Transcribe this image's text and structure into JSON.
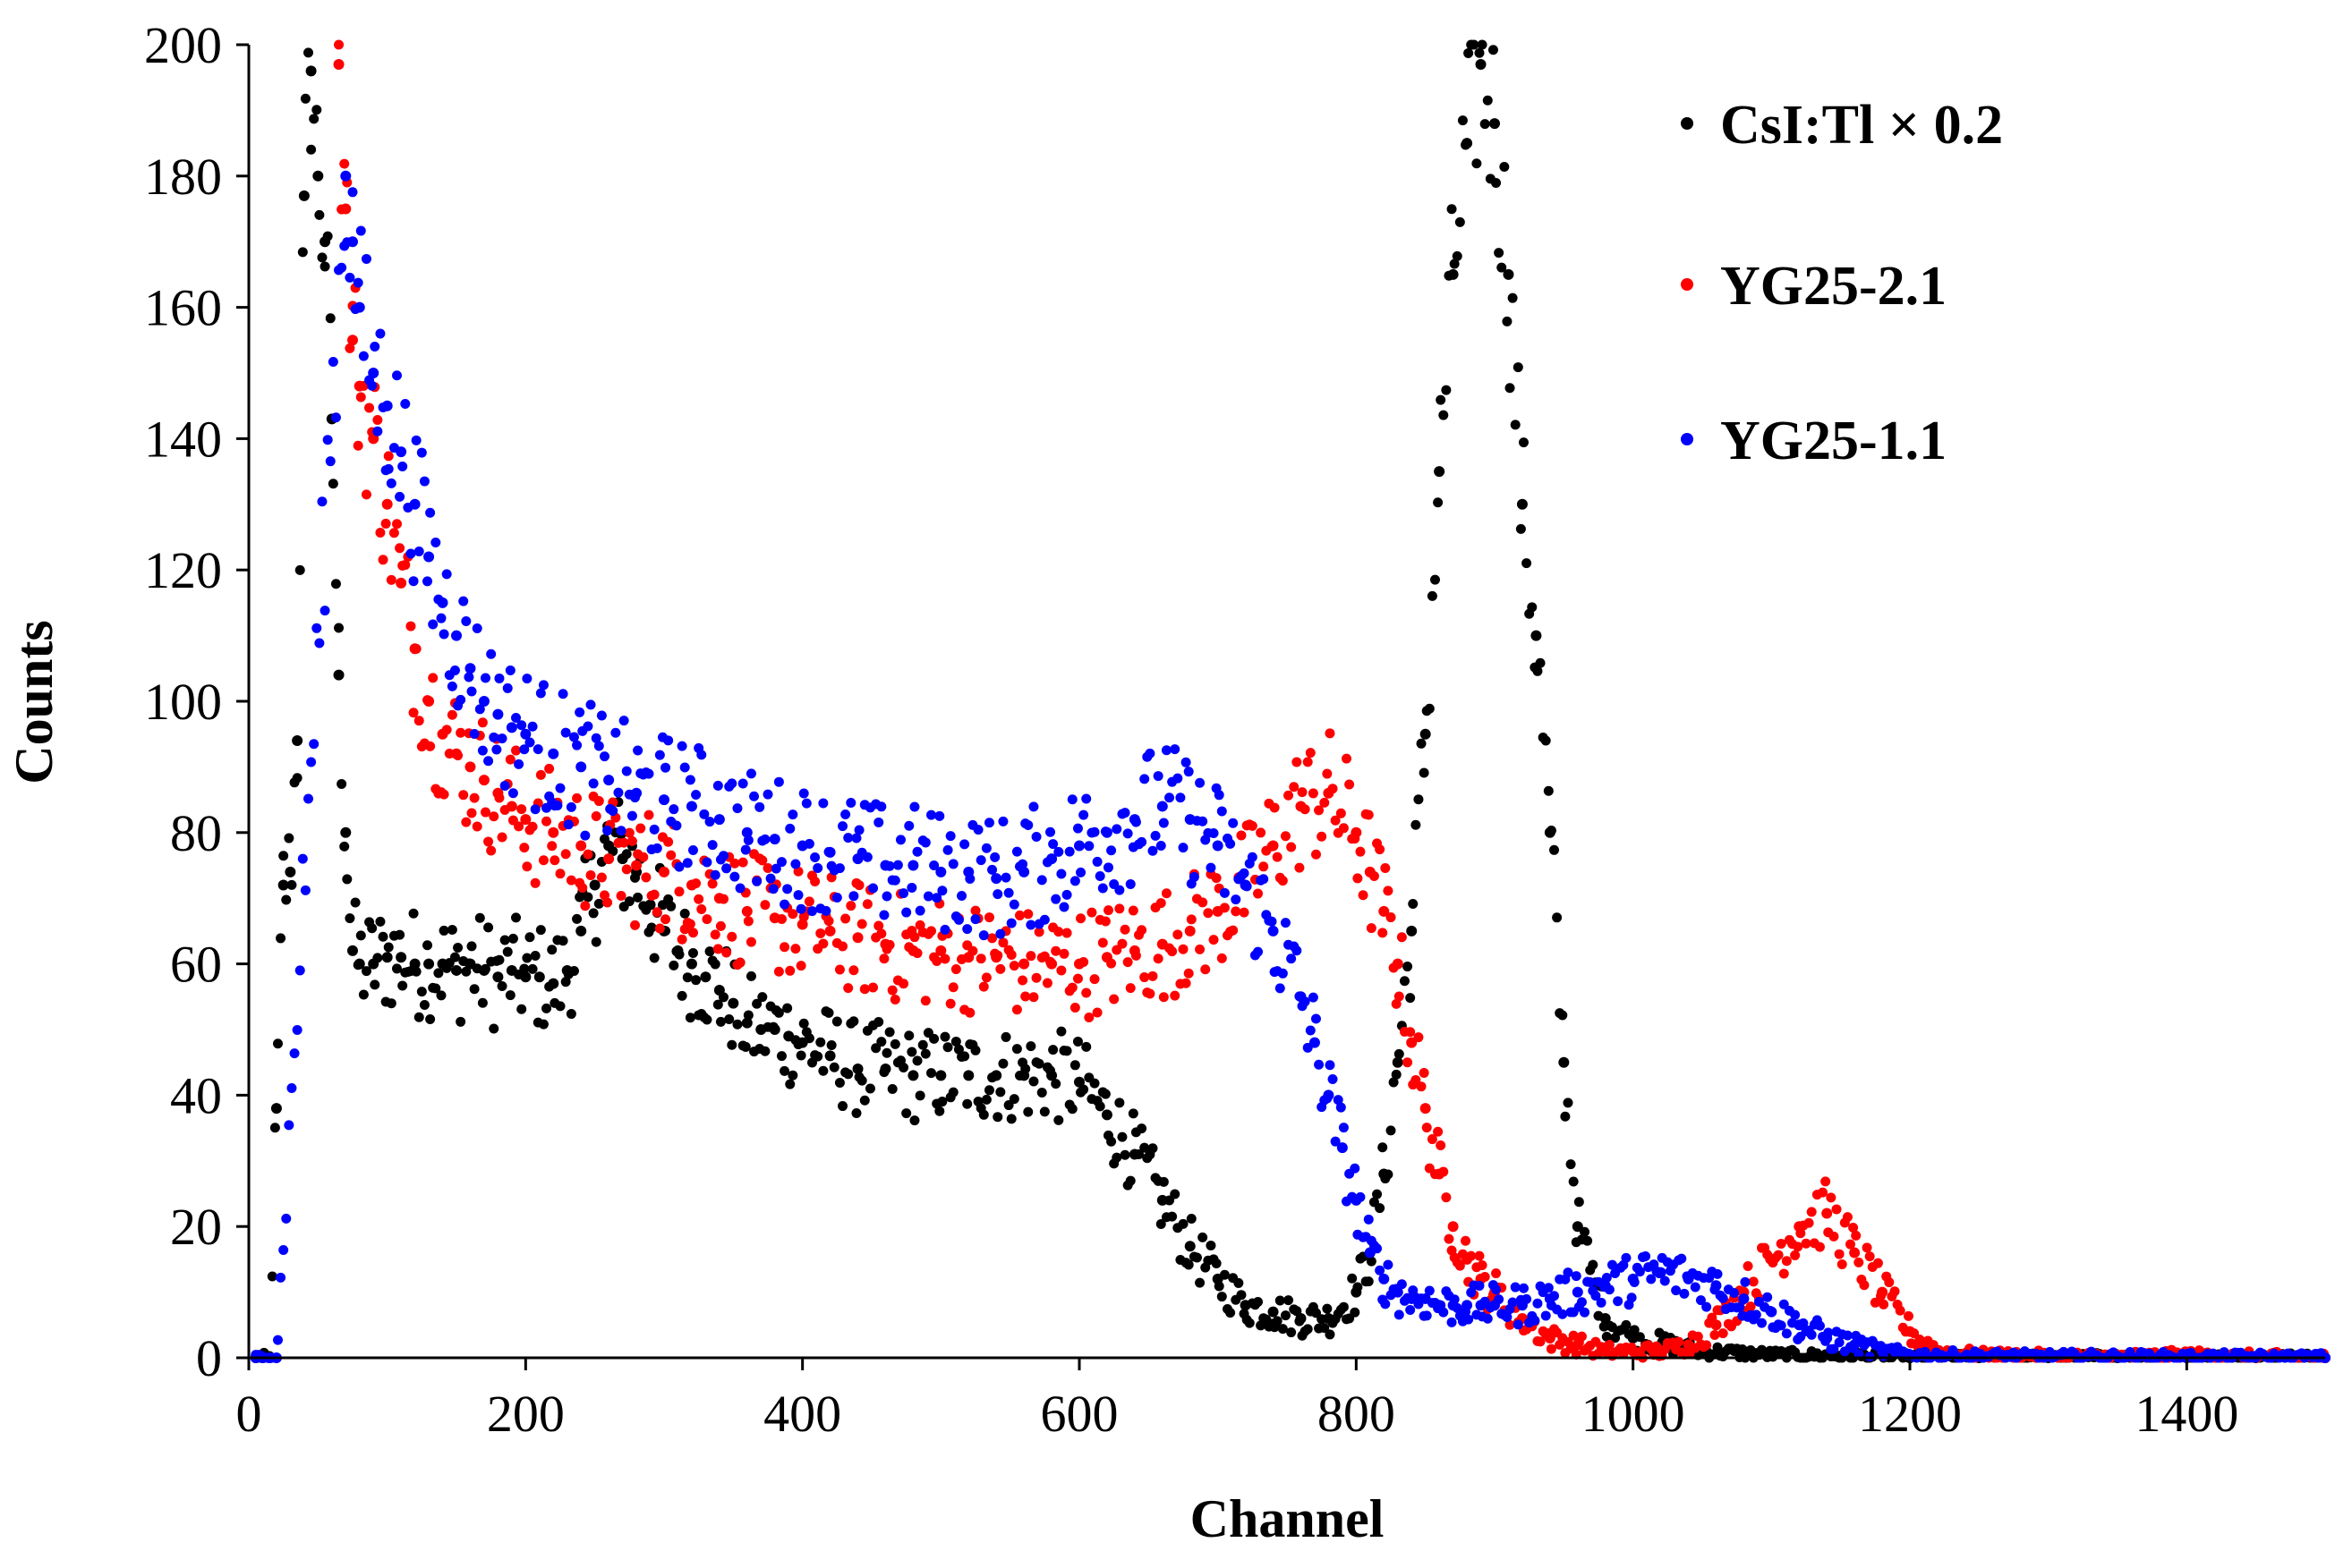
{
  "chart_data": {
    "type": "scatter",
    "title": "",
    "xlabel": "Channel",
    "ylabel": "Counts",
    "xlim": [
      0,
      1500
    ],
    "ylim": [
      0,
      200
    ],
    "xticks": [
      "0",
      "200",
      "400",
      "600",
      "800",
      "1000",
      "1200",
      "1400"
    ],
    "yticks": [
      "0",
      "20",
      "40",
      "60",
      "80",
      "100",
      "120",
      "140",
      "160",
      "180",
      "200"
    ],
    "grid": false,
    "legend_position": "top-right",
    "series": [
      {
        "name": "CsI:Tl × 0.2",
        "color": "#000000",
        "x": [
          5,
          10,
          15,
          20,
          25,
          30,
          35,
          40,
          45,
          50,
          55,
          60,
          65,
          70,
          75,
          80,
          90,
          100,
          110,
          120,
          130,
          140,
          150,
          160,
          170,
          180,
          190,
          200,
          210,
          220,
          230,
          240,
          250,
          260,
          270,
          280,
          290,
          300,
          310,
          320,
          330,
          340,
          350,
          360,
          370,
          380,
          390,
          400,
          420,
          440,
          460,
          480,
          500,
          520,
          540,
          560,
          580,
          600,
          620,
          640,
          660,
          680,
          700,
          720,
          740,
          760,
          780,
          800,
          810,
          820,
          830,
          840,
          850,
          860,
          870,
          880,
          890,
          900,
          910,
          920,
          930,
          940,
          950,
          960,
          980,
          1000,
          1050,
          1100,
          1150,
          1200,
          1250,
          1300,
          1350,
          1400,
          1450,
          1500
        ],
        "y": [
          0,
          0,
          0,
          38,
          72,
          74,
          94,
          177,
          196,
          180,
          170,
          143,
          104,
          80,
          62,
          60,
          60,
          61,
          61,
          60,
          60,
          60,
          59,
          60,
          59,
          58,
          59,
          58,
          58,
          57,
          59,
          65,
          72,
          78,
          76,
          74,
          69,
          65,
          62,
          60,
          58,
          56,
          54,
          51,
          50,
          50,
          49,
          48,
          46,
          44,
          44,
          43,
          43,
          43,
          43,
          43,
          43,
          42,
          37,
          31,
          24,
          17,
          12,
          8,
          7,
          6,
          6,
          10,
          16,
          28,
          45,
          65,
          95,
          135,
          165,
          185,
          197,
          188,
          165,
          130,
          110,
          80,
          45,
          20,
          6,
          3,
          1,
          0.5,
          0.3,
          0,
          0,
          0,
          0,
          0,
          0,
          0
        ]
      },
      {
        "name": "YG25-2.1",
        "color": "#ff0000",
        "x": [
          65,
          70,
          75,
          80,
          90,
          100,
          110,
          120,
          130,
          140,
          150,
          160,
          170,
          180,
          190,
          200,
          220,
          240,
          260,
          280,
          300,
          320,
          340,
          360,
          380,
          400,
          420,
          440,
          460,
          480,
          500,
          520,
          540,
          560,
          580,
          600,
          620,
          640,
          660,
          680,
          700,
          720,
          740,
          760,
          780,
          800,
          810,
          820,
          830,
          840,
          850,
          860,
          870,
          880,
          890,
          900,
          920,
          940,
          960,
          980,
          1000,
          1020,
          1040,
          1060,
          1080,
          1100,
          1120,
          1140,
          1160,
          1180,
          1200,
          1220,
          1250,
          1300,
          1350,
          1400,
          1450,
          1500
        ],
        "y": [
          197,
          175,
          155,
          148,
          140,
          130,
          118,
          108,
          100,
          95,
          92,
          90,
          88,
          86,
          84,
          82,
          80,
          78,
          76,
          75,
          74,
          72,
          70,
          68,
          67,
          66,
          65,
          64,
          63,
          62,
          62,
          61,
          61,
          60,
          60,
          60,
          61,
          62,
          63,
          65,
          68,
          72,
          78,
          84,
          86,
          80,
          74,
          68,
          60,
          48,
          38,
          28,
          20,
          15,
          12,
          10,
          6,
          3,
          2,
          1,
          1,
          1,
          2,
          5,
          10,
          15,
          20,
          22,
          16,
          10,
          4,
          1,
          0.5,
          0.3,
          0.2,
          0.5,
          0.2,
          0
        ]
      },
      {
        "name": "YG25-1.1",
        "color": "#0000ff",
        "x": [
          5,
          10,
          15,
          20,
          70,
          75,
          80,
          90,
          100,
          110,
          120,
          130,
          140,
          150,
          160,
          170,
          180,
          190,
          200,
          220,
          240,
          260,
          280,
          300,
          320,
          340,
          360,
          380,
          400,
          420,
          440,
          460,
          480,
          500,
          520,
          540,
          560,
          580,
          600,
          620,
          640,
          660,
          680,
          700,
          720,
          740,
          760,
          770,
          780,
          790,
          800,
          810,
          820,
          830,
          840,
          850,
          860,
          870,
          880,
          890,
          900,
          920,
          940,
          960,
          980,
          1000,
          1020,
          1040,
          1060,
          1080,
          1100,
          1120,
          1140,
          1160,
          1180,
          1200,
          1250,
          1300,
          1350,
          1400,
          1450,
          1500
        ],
        "y": [
          0,
          0,
          0,
          0,
          180,
          170,
          160,
          150,
          145,
          138,
          130,
          122,
          115,
          110,
          105,
          100,
          98,
          96,
          95,
          92,
          90,
          88,
          86,
          85,
          84,
          82,
          80,
          79,
          78,
          77,
          76,
          75,
          75,
          74,
          74,
          73,
          74,
          76,
          78,
          80,
          82,
          84,
          82,
          78,
          72,
          65,
          55,
          48,
          40,
          32,
          24,
          16,
          12,
          10,
          9,
          9,
          8,
          8,
          8,
          8,
          8,
          8,
          9,
          10,
          11,
          12,
          13,
          12,
          11,
          9,
          7,
          5,
          3,
          2,
          1,
          0.5,
          0.3,
          0.2,
          0.2,
          0.1,
          0.1,
          0
        ]
      }
    ]
  }
}
